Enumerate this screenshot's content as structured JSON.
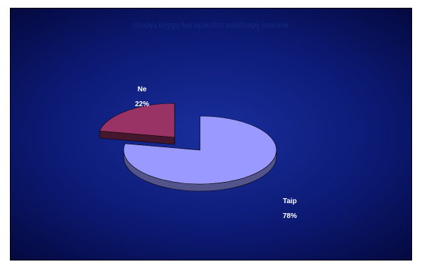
{
  "chart_data": {
    "type": "pie",
    "title": "Studijų knygų bei spaudos medžiagų įvairovė",
    "categories": [
      "Taip",
      "Ne"
    ],
    "values": [
      78,
      22
    ],
    "data_labels": [
      "78%",
      "22%"
    ],
    "three_d": true,
    "exploded": true,
    "colors": [
      "#9999ff",
      "#993366"
    ],
    "legend": "none"
  }
}
